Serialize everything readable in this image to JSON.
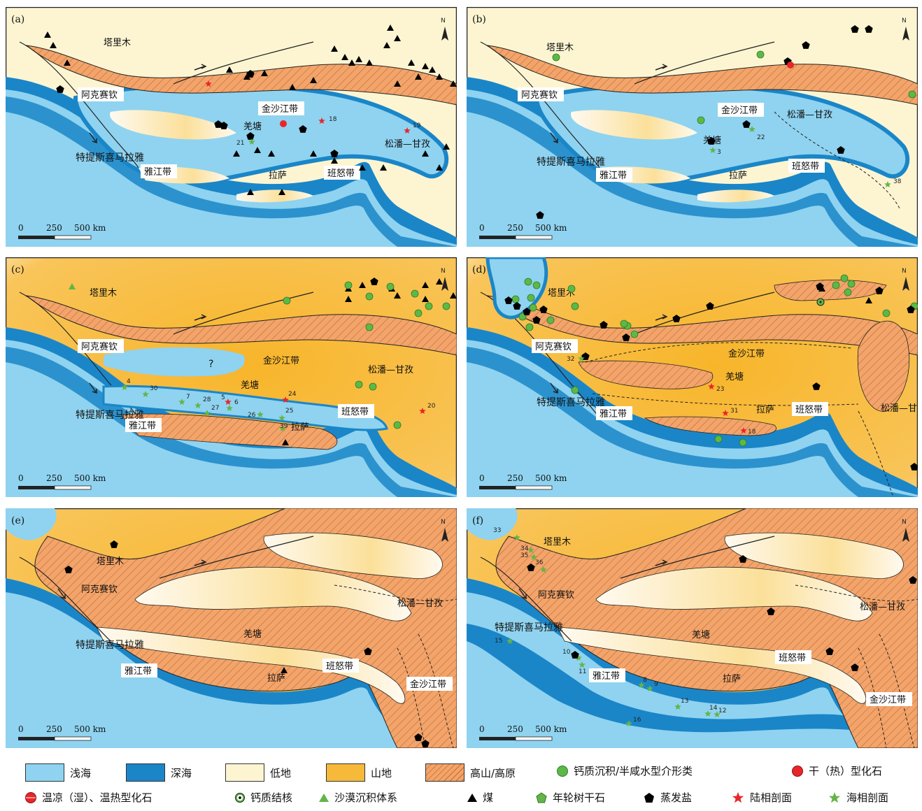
{
  "panels": [
    {
      "tag": "(a)",
      "north": "N",
      "scale": {
        "t0": "0",
        "t1": "250",
        "t2": "500 km"
      },
      "labels": {
        "tarim": "塔里木",
        "akesaiqin": "阿克赛钦",
        "jinsha": "金沙江带",
        "qiangtang": "羌塘",
        "songpan": "松潘—甘孜",
        "yajiang": "雅江带",
        "lhasa": "拉萨",
        "bangong": "班怒带",
        "tethys": "特提斯喜马拉雅"
      },
      "nums": [
        "18",
        "19",
        "21"
      ]
    },
    {
      "tag": "(b)",
      "north": "N",
      "scale": {
        "t0": "0",
        "t1": "250",
        "t2": "500 km"
      },
      "labels": {
        "tarim": "塔里木",
        "akesaiqin": "阿克赛钦",
        "jinsha": "金沙江带",
        "qiangtang": "羌塘",
        "songpan": "松潘—甘孜",
        "yajiang": "雅江带",
        "lhasa": "拉萨",
        "bangong": "班怒带",
        "tethys": "特提斯喜马拉雅"
      },
      "nums": [
        "22",
        "3",
        "38"
      ]
    },
    {
      "tag": "(c)",
      "north": "N",
      "scale": {
        "t0": "0",
        "t1": "250",
        "t2": "500 km"
      },
      "labels": {
        "tarim": "塔里木",
        "akesaiqin": "阿克赛钦",
        "jinsha": "金沙江带",
        "qiangtang": "羌塘",
        "songpan": "松潘—甘孜",
        "yajiang": "雅江带",
        "lhasa": "拉萨",
        "bangong": "班怒带",
        "tethys": "特提斯喜马拉雅",
        "question": "?"
      },
      "nums": [
        "4",
        "30",
        "7",
        "28",
        "27",
        "5",
        "6",
        "24",
        "26",
        "25",
        "39",
        "20"
      ]
    },
    {
      "tag": "(d)",
      "north": "N",
      "scale": {
        "t0": "0",
        "t1": "250",
        "t2": "500 km"
      },
      "labels": {
        "tarim": "塔里木",
        "akesaiqin": "阿克赛钦",
        "jinsha": "金沙江带",
        "qiangtang": "羌塘",
        "songpan": "松潘—甘孜",
        "yajiang": "雅江带",
        "lhasa": "拉萨",
        "bangong": "班怒带",
        "tethys": "特提斯喜马拉雅"
      },
      "nums": [
        "32",
        "23",
        "31",
        "18"
      ]
    },
    {
      "tag": "(e)",
      "north": "N",
      "scale": {
        "t0": "0",
        "t1": "250",
        "t2": "500 km"
      },
      "labels": {
        "tarim": "塔里木",
        "akesaiqin": "阿克赛钦",
        "jinsha": "金沙江带",
        "qiangtang": "羌塘",
        "songpan": "松潘—甘孜",
        "yajiang": "雅江带",
        "lhasa": "拉萨",
        "bangong": "班怒带",
        "tethys": "特提斯喜马拉雅"
      },
      "nums": []
    },
    {
      "tag": "(f)",
      "north": "N",
      "scale": {
        "t0": "0",
        "t1": "250",
        "t2": "500 km"
      },
      "labels": {
        "tarim": "塔里木",
        "akesaiqin": "阿克赛钦",
        "jinsha": "金沙江带",
        "qiangtang": "羌塘",
        "songpan": "松潘—甘孜",
        "yajiang": "雅江带",
        "lhasa": "拉萨",
        "bangong": "班怒带",
        "tethys": "特提斯喜马拉雅"
      },
      "nums": [
        "33",
        "34",
        "35",
        "36",
        "15",
        "10",
        "11",
        "8",
        "9",
        "13",
        "14",
        "12",
        "16"
      ]
    }
  ],
  "legend": {
    "row1": [
      "浅海",
      "深海",
      "低地",
      "山地",
      "高山/高原",
      "钙质沉积/半咸水型介形类",
      "干（热）型化石"
    ],
    "row2": [
      "温凉（湿）、温热型化石",
      "钙质结核",
      "沙漠沉积体系",
      "煤",
      "年轮树干石",
      "蒸发盐",
      "陆相剖面",
      "海相剖面"
    ]
  },
  "colors": {
    "shallow_sea": "#8fd3f0",
    "deep_sea": "#1a86c8",
    "lowland": "#fdf5d2",
    "mountain": "#f7b93a",
    "highland": "#f2a46a",
    "calcareous": "#5cb947",
    "fossil_red": "#e8262a",
    "star_red": "#e8262a",
    "star_green": "#64b447",
    "black": "#000000"
  }
}
